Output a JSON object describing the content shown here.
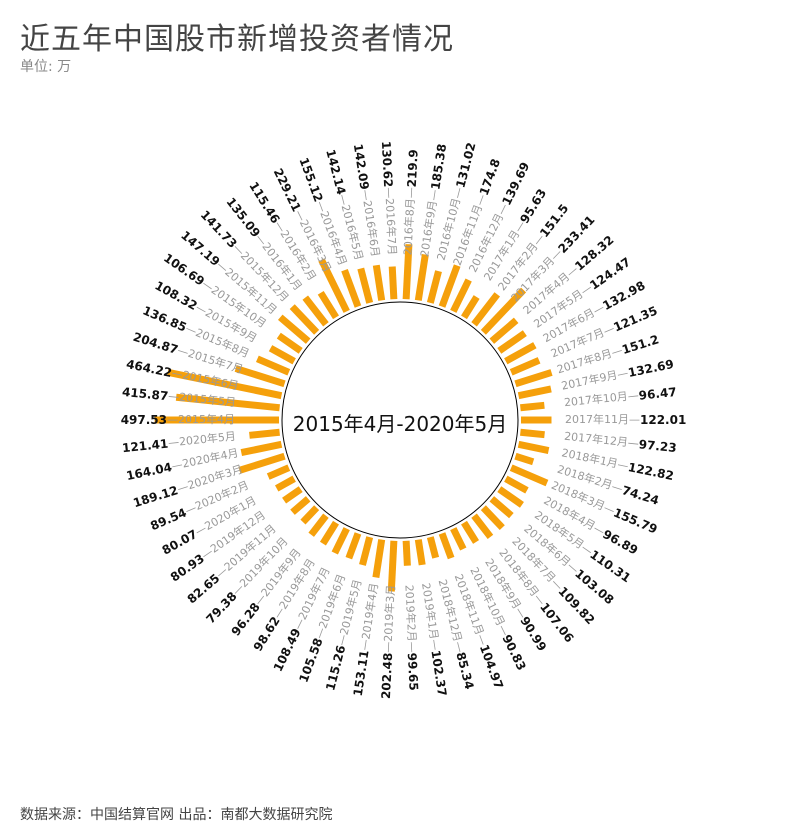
{
  "header": {
    "title": "近五年中国股市新增投资者情况",
    "unit": "单位: 万"
  },
  "footer": {
    "source": "数据来源：中国结算官网 出品：南都大数据研究院"
  },
  "colors": {
    "bar": "#f5a00b",
    "month_label": "#999999",
    "value_label": "#111111",
    "circle": "#000000"
  },
  "chart_data": {
    "type": "radial-bar",
    "center_label": "2015年4月-2020年5月",
    "categories": [
      "2015年4月",
      "2015年5月",
      "2015年6月",
      "2015年7月",
      "2015年8月",
      "2015年9月",
      "2015年10月",
      "2015年11月",
      "2015年12月",
      "2016年1月",
      "2016年2月",
      "2016年3月",
      "2016年4月",
      "2016年5月",
      "2016年6月",
      "2016年7月",
      "2016年8月",
      "2016年9月",
      "2016年10月",
      "2016年11月",
      "2016年12月",
      "2017年1月",
      "2017年2月",
      "2017年3月",
      "2017年4月",
      "2017年5月",
      "2017年6月",
      "2017年7月",
      "2017年8月",
      "2017年9月",
      "2017年10月",
      "2017年11月",
      "2017年12月",
      "2018年1月",
      "2018年2月",
      "2018年3月",
      "2018年4月",
      "2018年5月",
      "2018年6月",
      "2018年7月",
      "2018年8月",
      "2018年9月",
      "2018年10月",
      "2018年11月",
      "2018年12月",
      "2019年1月",
      "2019年2月",
      "2019年3月",
      "2019年4月",
      "2019年5月",
      "2019年6月",
      "2019年7月",
      "2019年8月",
      "2019年9月",
      "2019年10月",
      "2019年11月",
      "2019年12月",
      "2020年1月",
      "2020年2月",
      "2020年3月",
      "2020年4月",
      "2020年5月"
    ],
    "values": [
      497.53,
      415.87,
      464.22,
      204.87,
      136.85,
      108.32,
      106.69,
      147.19,
      141.73,
      135.09,
      115.46,
      229.21,
      155.12,
      142.14,
      142.09,
      130.62,
      219.9,
      185.38,
      131.02,
      174.8,
      139.69,
      95.63,
      151.5,
      233.41,
      128.32,
      124.47,
      132.98,
      121.35,
      151.2,
      132.69,
      96.47,
      122.01,
      97.23,
      122.82,
      74.24,
      155.79,
      96.89,
      110.31,
      103.08,
      109.82,
      107.06,
      90.99,
      90.83,
      104.97,
      85.34,
      102.37,
      99.65,
      202.48,
      153.11,
      115.26,
      105.58,
      108.49,
      98.62,
      96.28,
      79.38,
      82.65,
      80.93,
      80.07,
      89.54,
      189.12,
      164.04,
      121.41
    ],
    "value_labels": [
      "497.53",
      "415.87",
      "464.22",
      "204.87",
      "136.85",
      "108.32",
      "106.69",
      "147.19",
      "141.73",
      "135.09",
      "115.46",
      "229.21",
      "155.12",
      "142.14",
      "142.09",
      "130.62",
      "219.9",
      "185.38",
      "131.02",
      "174.8",
      "139.69",
      "95.63",
      "151.5",
      "233.41",
      "128.32",
      "124.47",
      "132.98",
      "121.35",
      "151.2",
      "132.69",
      "96.47",
      "122.01",
      "97.23",
      "122.82",
      "74.24",
      "155.79",
      "96.89",
      "110.31",
      "103.08",
      "109.82",
      "107.06",
      "90.99",
      "90.83",
      "104.97",
      "85.34",
      "102.37",
      "99.65",
      "202.48",
      "153.11",
      "115.26",
      "105.58",
      "108.49",
      "98.62",
      "96.28",
      "79.38",
      "82.65",
      "80.93",
      "80.07",
      "89.54",
      "189.12",
      "164.04",
      "121.41"
    ]
  }
}
